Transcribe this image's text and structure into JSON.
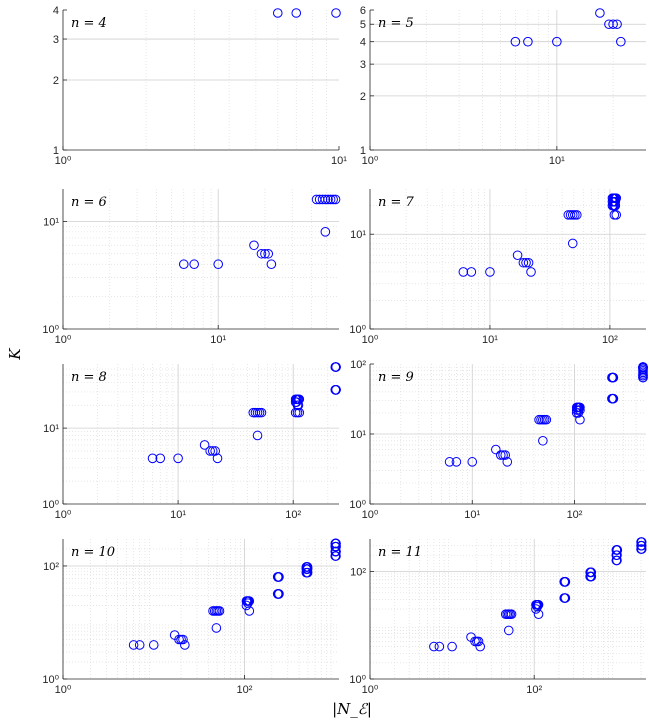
{
  "figure": {
    "ylabel": "K",
    "xlabel": "|N_ℰ|",
    "marker_color": "#0000ff",
    "grid_color": "#dddddd"
  },
  "chart_data": [
    {
      "type": "scatter",
      "panel_label": "n = 4",
      "xscale": "log",
      "yscale": "log",
      "xlim": [
        1,
        10
      ],
      "ylim": [
        1,
        4
      ],
      "xticks": [
        1,
        10
      ],
      "xtick_labels": [
        "10⁰",
        "10¹"
      ],
      "yticks": [
        1,
        2,
        3,
        4
      ],
      "ytick_labels": [
        "1",
        "2",
        "3",
        "4"
      ],
      "x": [
        6,
        7,
        10
      ],
      "y": [
        4,
        4,
        4
      ]
    },
    {
      "type": "scatter",
      "panel_label": "n = 5",
      "xscale": "log",
      "yscale": "log",
      "xlim": [
        1,
        30
      ],
      "ylim": [
        1,
        6
      ],
      "xticks": [
        1,
        10
      ],
      "xtick_labels": [
        "10⁰",
        "10¹"
      ],
      "yticks": [
        1,
        2,
        3,
        4,
        5,
        6
      ],
      "ytick_labels": [
        "1",
        "2",
        "3",
        "4",
        "5",
        "6"
      ],
      "x": [
        6,
        7,
        10,
        17,
        19,
        20,
        21,
        22
      ],
      "y": [
        4,
        4,
        4,
        6,
        5,
        5,
        5,
        4
      ]
    },
    {
      "type": "scatter",
      "panel_label": "n = 6",
      "xscale": "log",
      "yscale": "log",
      "xlim": [
        1,
        60
      ],
      "ylim": [
        1,
        20
      ],
      "xticks": [
        1,
        10
      ],
      "xtick_labels": [
        "10⁰",
        "10¹"
      ],
      "yticks": [
        1,
        10
      ],
      "ytick_labels": [
        "10⁰",
        "10¹"
      ],
      "x": [
        6,
        7,
        10,
        17,
        19,
        20,
        21,
        22,
        43,
        45,
        47,
        49,
        51,
        53,
        55,
        57,
        49
      ],
      "y": [
        4,
        4,
        4,
        6,
        5,
        5,
        5,
        4,
        16,
        16,
        16,
        16,
        16,
        16,
        16,
        16,
        8
      ]
    },
    {
      "type": "scatter",
      "panel_label": "n = 7",
      "xscale": "log",
      "yscale": "log",
      "xlim": [
        1,
        200
      ],
      "ylim": [
        1,
        30
      ],
      "xticks": [
        1,
        10,
        100
      ],
      "xtick_labels": [
        "10⁰",
        "10¹",
        "10²"
      ],
      "yticks": [
        1,
        10
      ],
      "ytick_labels": [
        "10⁰",
        "10¹"
      ],
      "x": [
        6,
        7,
        10,
        17,
        19,
        20,
        21,
        22,
        45,
        47,
        49,
        51,
        53,
        49,
        105,
        107,
        109,
        111,
        113,
        105,
        107,
        109,
        111,
        105,
        107,
        109,
        111,
        113,
        109
      ],
      "y": [
        4,
        4,
        4,
        6,
        5,
        5,
        5,
        4,
        16,
        16,
        16,
        16,
        16,
        8,
        24,
        24,
        24,
        24,
        24,
        22,
        22,
        22,
        22,
        20,
        20,
        20,
        20,
        16,
        16
      ]
    },
    {
      "type": "scatter",
      "panel_label": "n = 8",
      "xscale": "log",
      "yscale": "log",
      "xlim": [
        1,
        250
      ],
      "ylim": [
        1,
        70
      ],
      "xticks": [
        1,
        10,
        100
      ],
      "xtick_labels": [
        "10⁰",
        "10¹",
        "10²"
      ],
      "yticks": [
        1,
        10
      ],
      "ytick_labels": [
        "10⁰",
        "10¹"
      ],
      "x": [
        6,
        7,
        10,
        17,
        19,
        20,
        21,
        22,
        45,
        47,
        49,
        51,
        53,
        49,
        105,
        107,
        109,
        111,
        113,
        105,
        107,
        109,
        111,
        105,
        109,
        113,
        232,
        234,
        236,
        238,
        240,
        232,
        234,
        236,
        238,
        240
      ],
      "y": [
        4,
        4,
        4,
        6,
        5,
        5,
        5,
        4,
        16,
        16,
        16,
        16,
        16,
        8,
        24,
        24,
        24,
        24,
        24,
        22,
        22,
        20,
        20,
        16,
        16,
        16,
        64,
        64,
        64,
        64,
        64,
        32,
        32,
        32,
        32,
        32
      ]
    },
    {
      "type": "scatter",
      "panel_label": "n = 9",
      "xscale": "log",
      "yscale": "log",
      "xlim": [
        1,
        500
      ],
      "ylim": [
        1,
        100
      ],
      "xticks": [
        1,
        10,
        100
      ],
      "xtick_labels": [
        "10⁰",
        "10¹",
        "10²"
      ],
      "yticks": [
        1,
        10,
        100
      ],
      "ytick_labels": [
        "10⁰",
        "10¹",
        "10²"
      ],
      "x": [
        6,
        7,
        10,
        17,
        19,
        20,
        21,
        22,
        45,
        47,
        49,
        51,
        53,
        49,
        105,
        107,
        109,
        111,
        113,
        105,
        109,
        113,
        105,
        109,
        113,
        232,
        234,
        236,
        238,
        240,
        232,
        234,
        236,
        238,
        240,
        480,
        482,
        484,
        486,
        488,
        490,
        492,
        494,
        496,
        498,
        484,
        488,
        492,
        496
      ],
      "y": [
        4,
        4,
        4,
        6,
        5,
        5,
        5,
        4,
        16,
        16,
        16,
        16,
        16,
        8,
        24,
        24,
        24,
        24,
        24,
        22,
        22,
        22,
        20,
        20,
        16,
        64,
        64,
        64,
        64,
        64,
        32,
        32,
        32,
        32,
        32,
        96,
        96,
        92,
        92,
        88,
        88,
        84,
        80,
        76,
        72,
        68,
        68,
        64,
        64
      ]
    },
    {
      "type": "scatter",
      "panel_label": "n = 10",
      "xscale": "log",
      "yscale": "log",
      "xlim": [
        1,
        1100
      ],
      "ylim": [
        1,
        300
      ],
      "xticks": [
        1,
        100
      ],
      "xtick_labels": [
        "10⁰",
        "10²"
      ],
      "yticks": [
        1,
        100
      ],
      "ytick_labels": [
        "10⁰",
        "10²"
      ],
      "x": [
        6,
        7,
        10,
        17,
        19,
        20,
        21,
        22,
        45,
        47,
        49,
        51,
        53,
        49,
        105,
        107,
        109,
        111,
        113,
        109,
        105,
        113,
        232,
        234,
        236,
        238,
        240,
        232,
        234,
        236,
        238,
        240,
        480,
        484,
        488,
        492,
        496,
        480,
        484,
        488,
        492,
        496,
        480,
        488,
        496,
        1000,
        1010,
        1020,
        1030,
        1000,
        1010,
        1020,
        1030,
        1000,
        1010,
        1020,
        1030,
        1000,
        1020
      ],
      "y": [
        4,
        4,
        4,
        6,
        5,
        5,
        5,
        4,
        16,
        16,
        16,
        16,
        16,
        8,
        24,
        24,
        24,
        24,
        24,
        22,
        20,
        16,
        64,
        64,
        64,
        64,
        64,
        32,
        32,
        32,
        32,
        32,
        96,
        96,
        96,
        96,
        96,
        88,
        88,
        88,
        88,
        88,
        76,
        76,
        76,
        250,
        250,
        250,
        250,
        220,
        220,
        220,
        220,
        180,
        180,
        180,
        180,
        150,
        150
      ]
    },
    {
      "type": "scatter",
      "panel_label": "n = 11",
      "xscale": "log",
      "yscale": "log",
      "xlim": [
        1,
        2300
      ],
      "ylim": [
        1,
        400
      ],
      "xticks": [
        1,
        100
      ],
      "xtick_labels": [
        "10⁰",
        "10²"
      ],
      "yticks": [
        1,
        100
      ],
      "ytick_labels": [
        "10⁰",
        "10²"
      ],
      "x": [
        6,
        7,
        10,
        17,
        19,
        20,
        21,
        22,
        45,
        47,
        49,
        51,
        53,
        49,
        105,
        107,
        109,
        111,
        113,
        109,
        105,
        113,
        232,
        234,
        236,
        238,
        240,
        232,
        236,
        240,
        480,
        484,
        488,
        492,
        496,
        480,
        488,
        496,
        1000,
        1010,
        1020,
        1030,
        1000,
        1020,
        1000,
        1020,
        2000,
        2020,
        2040,
        2000,
        2020,
        2040,
        2000,
        2040
      ],
      "y": [
        4,
        4,
        4,
        6,
        5,
        5,
        5,
        4,
        16,
        16,
        16,
        16,
        16,
        8,
        24,
        24,
        24,
        24,
        24,
        22,
        20,
        16,
        64,
        64,
        64,
        64,
        64,
        32,
        32,
        32,
        96,
        96,
        96,
        96,
        96,
        80,
        80,
        80,
        250,
        250,
        250,
        250,
        200,
        200,
        160,
        160,
        360,
        360,
        360,
        300,
        300,
        300,
        260,
        260
      ]
    }
  ]
}
